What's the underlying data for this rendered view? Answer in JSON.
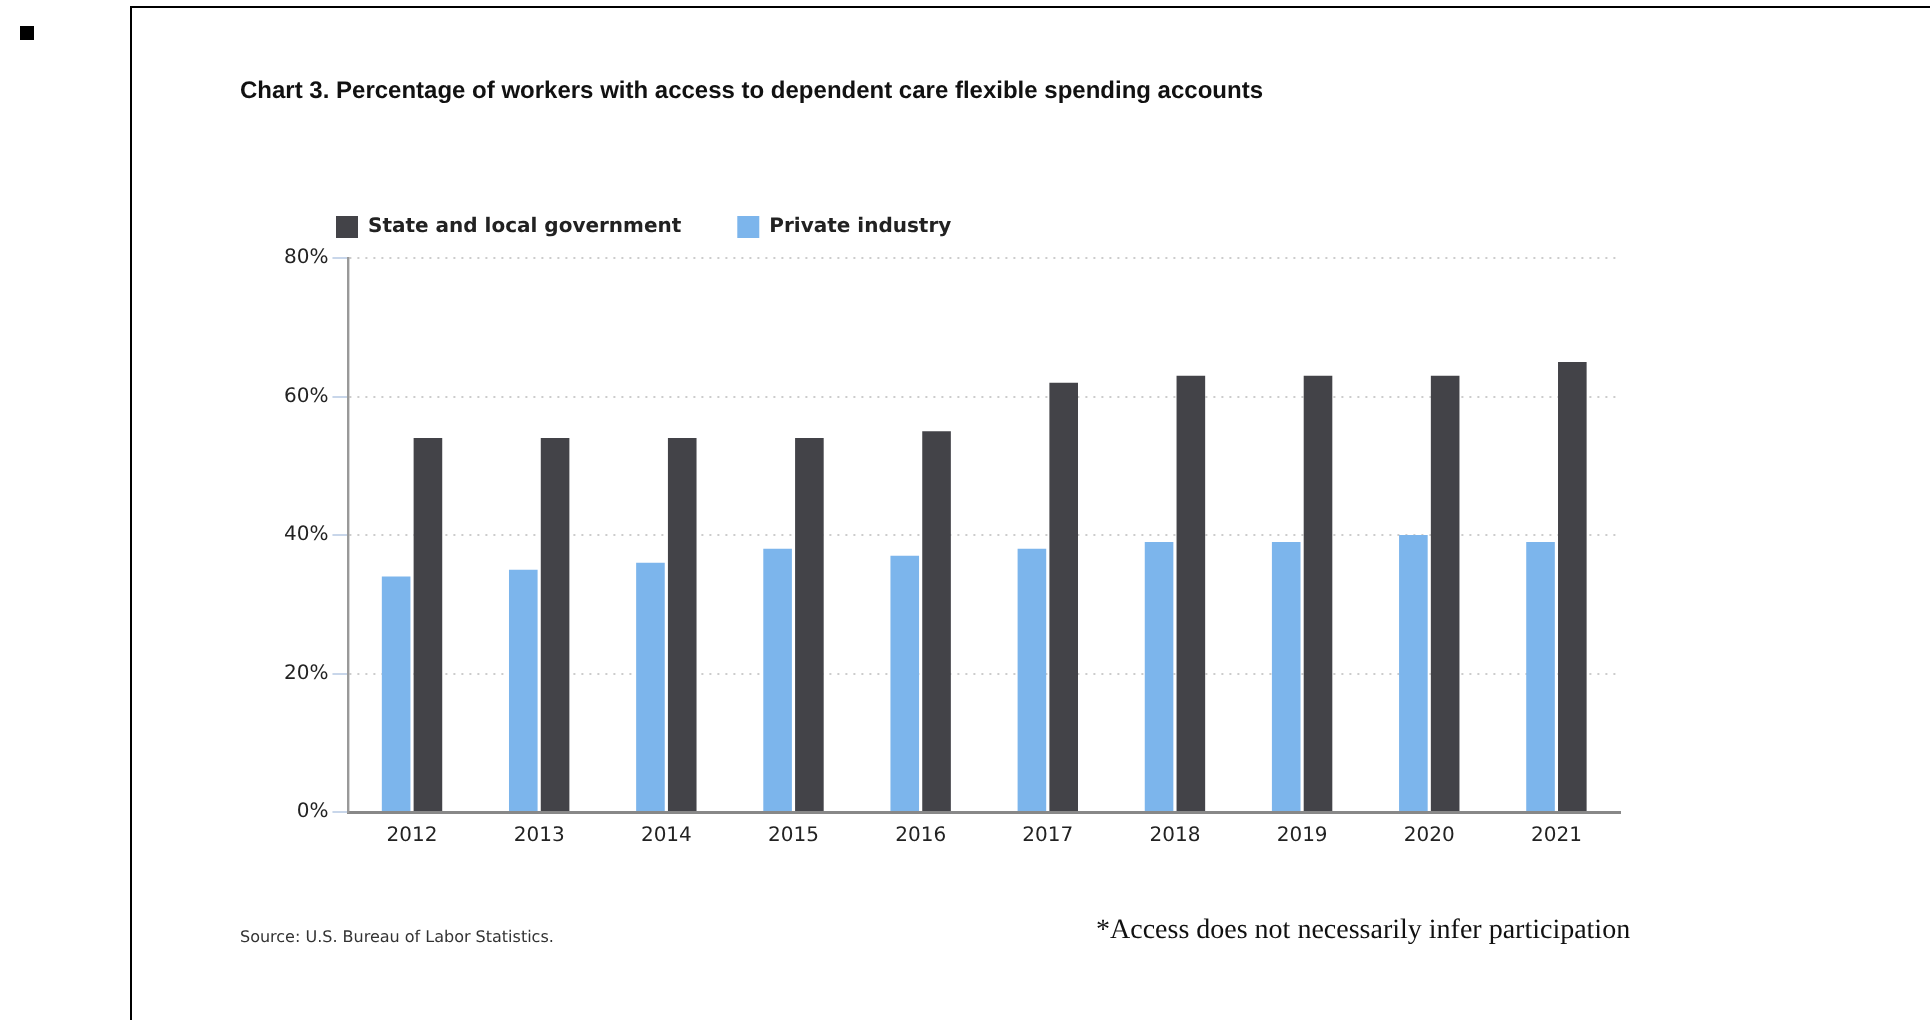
{
  "chart_data": {
    "type": "bar",
    "title": "Chart 3. Percentage of workers with access to dependent care flexible spending accounts",
    "categories": [
      "2012",
      "2013",
      "2014",
      "2015",
      "2016",
      "2017",
      "2018",
      "2019",
      "2020",
      "2021"
    ],
    "series": [
      {
        "name": "Private industry",
        "color": "#7cb5ec",
        "values": [
          34,
          35,
          36,
          38,
          37,
          38,
          39,
          39,
          40,
          39
        ]
      },
      {
        "name": "State and local government",
        "color": "#434348",
        "values": [
          54,
          54,
          54,
          54,
          55,
          62,
          63,
          63,
          63,
          65
        ]
      }
    ],
    "ylim": [
      0,
      80
    ],
    "yticks": [
      {
        "value": 0,
        "label": "0%"
      },
      {
        "value": 20,
        "label": "20%"
      },
      {
        "value": 40,
        "label": "40%"
      },
      {
        "value": 60,
        "label": "60%"
      },
      {
        "value": 80,
        "label": "80%"
      }
    ],
    "grid": "y",
    "legend": "top left",
    "annotations": [
      "Source: U.S. Bureau of Labor Statistics.",
      "*Access does not necessarily infer participation"
    ]
  }
}
